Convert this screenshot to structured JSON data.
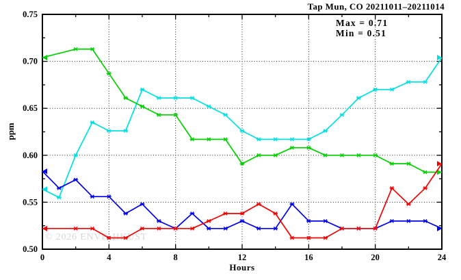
{
  "title": "Tap Mun, CO 20211011–20211014",
  "annotation": {
    "max_label": "Max = 0.71",
    "min_label": "Min = 0.51"
  },
  "watermark": "© 2026 ENVF, HKUST",
  "chart_data": {
    "type": "line",
    "title": "Tap Mun, CO 20211011–20211014",
    "xlabel": "Hours",
    "ylabel": "ppm",
    "xlim": [
      0,
      24
    ],
    "ylim": [
      0.5,
      0.75
    ],
    "x_major_ticks": [
      0,
      4,
      8,
      12,
      16,
      20,
      24
    ],
    "x_minor_step": 2,
    "y_major_ticks": [
      0.5,
      0.55,
      0.6,
      0.65,
      0.7,
      0.75
    ],
    "y_minor_step": 0.025,
    "grid": "dotted lines at interior major ticks",
    "legend_position": "none",
    "annotations": [
      "Max = 0.71",
      "Min = 0.51"
    ],
    "x": [
      0,
      1,
      2,
      3,
      4,
      5,
      6,
      7,
      8,
      9,
      10,
      11,
      12,
      13,
      14,
      15,
      16,
      17,
      18,
      19,
      20,
      21,
      22,
      23,
      24
    ],
    "series": [
      {
        "name": "cyan-line",
        "color": "#00E0E0",
        "values": [
          0.564,
          0.555,
          0.6,
          0.635,
          0.626,
          0.626,
          0.67,
          0.661,
          0.661,
          0.661,
          0.652,
          0.643,
          0.626,
          0.617,
          0.617,
          0.617,
          0.617,
          0.626,
          0.643,
          0.661,
          0.67,
          0.67,
          0.678,
          0.678,
          0.704
        ]
      },
      {
        "name": "green-line",
        "color": "#00CF00",
        "values": [
          0.704,
          null,
          0.713,
          0.713,
          0.687,
          0.661,
          0.652,
          0.643,
          0.643,
          0.617,
          0.617,
          0.617,
          0.591,
          0.6,
          0.6,
          0.608,
          0.608,
          0.6,
          0.6,
          0.6,
          0.6,
          0.591,
          0.591,
          0.582,
          0.582
        ]
      },
      {
        "name": "blue-line",
        "color": "#0000F0",
        "values": [
          0.583,
          0.565,
          0.574,
          0.556,
          0.556,
          0.538,
          0.548,
          0.53,
          0.522,
          0.538,
          0.522,
          0.522,
          0.53,
          0.522,
          0.522,
          0.548,
          0.53,
          0.53,
          0.522,
          0.522,
          0.522,
          0.53,
          0.53,
          0.53,
          0.522
        ]
      },
      {
        "name": "red-line",
        "color": "#F50000",
        "values": [
          0.522,
          null,
          0.522,
          0.522,
          0.512,
          0.512,
          0.522,
          0.522,
          0.522,
          0.522,
          0.53,
          0.538,
          0.538,
          0.548,
          0.538,
          0.512,
          0.512,
          0.512,
          0.522,
          0.522,
          0.522,
          0.565,
          0.548,
          0.565,
          0.591
        ]
      }
    ]
  }
}
